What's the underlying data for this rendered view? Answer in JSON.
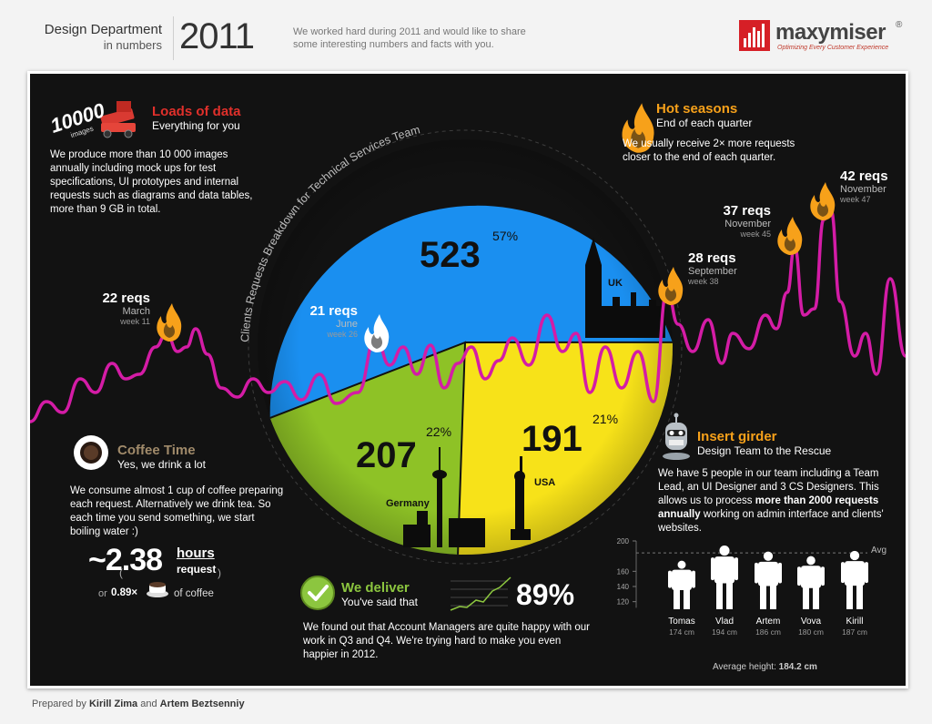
{
  "header": {
    "title": "Design Department",
    "subtitle": "in numbers",
    "year": "2011",
    "intro": "We worked hard during 2011 and would like to share some interesting numbers and facts with you."
  },
  "logo": {
    "name": "maxymiser",
    "registered": "®",
    "tagline": "Optimizing Every Customer Experience"
  },
  "blocks": {
    "data": {
      "badge": "10000",
      "badge_sub": "images",
      "title": "Loads of data",
      "subtitle": "Everything for you",
      "body": "We produce more than 10 000 images annually including mock ups for test specifications, UI prototypes and internal requests such as diagrams and data tables, more than 9 GB in total."
    },
    "seasons": {
      "title": "Hot seasons",
      "subtitle": "End of each quarter",
      "body": "We usually receive 2× more requests closer to the end of each quarter."
    },
    "coffee": {
      "title": "Coffee Time",
      "subtitle": "Yes, we drink a lot",
      "body": "We consume almost 1 cup of coffee preparing each request. Alternatively we drink tea.  So each time you send something, we start boiling water :)",
      "value": "~2.38",
      "unit": "hours",
      "unit2": "request",
      "alt_prefix": "or",
      "alt_value": "0.89×",
      "alt_suffix": "of coffee"
    },
    "deliver": {
      "title": "We deliver",
      "subtitle": "You've said that",
      "value": "89%",
      "body": "We found out that Account Managers are quite happy with our work in Q3 and Q4. We're trying hard to make you even happier in 2012."
    },
    "team": {
      "title": "Insert girder",
      "subtitle": "Design Team to the Rescue",
      "body_pre": "We have 5 people in our team including a Team Lead, an UI Designer and 3 CS Designers. This allows us to process ",
      "body_bold": "more than 2000 requests annually",
      "body_post": " working on admin interface and clients' websites.",
      "avg_label": "Avg",
      "avg_text": "Average height:",
      "avg_value": "184.2 cm"
    }
  },
  "peaks": [
    {
      "reqs": "22 reqs",
      "month": "March",
      "week": "week 11"
    },
    {
      "reqs": "21 reqs",
      "month": "June",
      "week": "week 26"
    },
    {
      "reqs": "28 reqs",
      "month": "September",
      "week": "week 38"
    },
    {
      "reqs": "37 reqs",
      "month": "November",
      "week": "week 45"
    },
    {
      "reqs": "42 reqs",
      "month": "November",
      "week": "week 47"
    }
  ],
  "colors": {
    "uk": "#1a8ff0",
    "usa": "#f7e219",
    "germany": "#8ec226",
    "line": "#d41ca6",
    "accent_red": "#e0302b",
    "accent_orange": "#f7a11a",
    "accent_green": "#8cc63f"
  },
  "chart_data": [
    {
      "type": "pie",
      "title": "Clients Requests Breakdown for Technical Services Team",
      "slices": [
        {
          "label": "UK",
          "value": 523,
          "percent": "57%",
          "color": "#1a8ff0"
        },
        {
          "label": "USA",
          "value": 191,
          "percent": "21%",
          "color": "#f7e219"
        },
        {
          "label": "Germany",
          "value": 207,
          "percent": "22%",
          "color": "#8ec226"
        }
      ]
    },
    {
      "type": "bar",
      "categories": [
        "Tomas",
        "Vlad",
        "Artem",
        "Vova",
        "Kirill"
      ],
      "values": [
        174,
        194,
        186,
        180,
        187
      ],
      "value_labels": [
        "174 cm",
        "194 cm",
        "186 cm",
        "180 cm",
        "187 cm"
      ],
      "ytick_labels": [
        "200",
        "160",
        "140",
        "120"
      ],
      "yticks": [
        200,
        160,
        140,
        120
      ],
      "ylim": [
        110,
        200
      ],
      "average": 184.2
    }
  ]
}
